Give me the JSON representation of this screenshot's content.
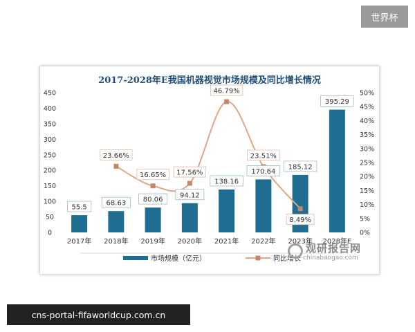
{
  "badge": "世界杯",
  "footer_url": "cns-portal-fifaworldcup.com.cn",
  "watermark": {
    "text": "观研报告网",
    "sub": "chinabaogao.com"
  },
  "colors": {
    "bar": "#1f6e92",
    "line": "#e1a58a",
    "marker": "#c5876b",
    "title": "#1f4e79"
  },
  "chart_data": {
    "type": "bar",
    "title": "2017-2028年E我国机器视觉市场规模及同比增长情况",
    "categories": [
      "2017年",
      "2018年",
      "2019年",
      "2020年",
      "2021年",
      "2022年",
      "2023年",
      "2028年E"
    ],
    "y_left_ticks": [
      "0",
      "50",
      "100",
      "150",
      "200",
      "250",
      "300",
      "350",
      "400",
      "450"
    ],
    "y_right_ticks": [
      "0%",
      "5%",
      "10%",
      "15%",
      "20%",
      "25%",
      "30%",
      "35%",
      "40%",
      "45%",
      "50%"
    ],
    "ylim_left": [
      0,
      450
    ],
    "ylim_right": [
      0,
      50
    ],
    "series": [
      {
        "name": "市场规模（亿元）",
        "type": "bar",
        "values": [
          55.5,
          68.63,
          80.06,
          94.12,
          138.16,
          170.64,
          185.12,
          395.29
        ],
        "labels": [
          "55.5",
          "68.63",
          "80.06",
          "94.12",
          "138.16",
          "170.64",
          "185.12",
          "395.29"
        ]
      },
      {
        "name": "同比增长",
        "type": "line",
        "values": [
          null,
          23.66,
          16.65,
          17.56,
          46.79,
          23.51,
          8.49,
          null
        ],
        "labels": [
          "",
          "23.66%",
          "16.65%",
          "17.56%",
          "46.79%",
          "23.51%",
          "8.49%",
          ""
        ]
      }
    ],
    "legend_position": "bottom-center"
  }
}
